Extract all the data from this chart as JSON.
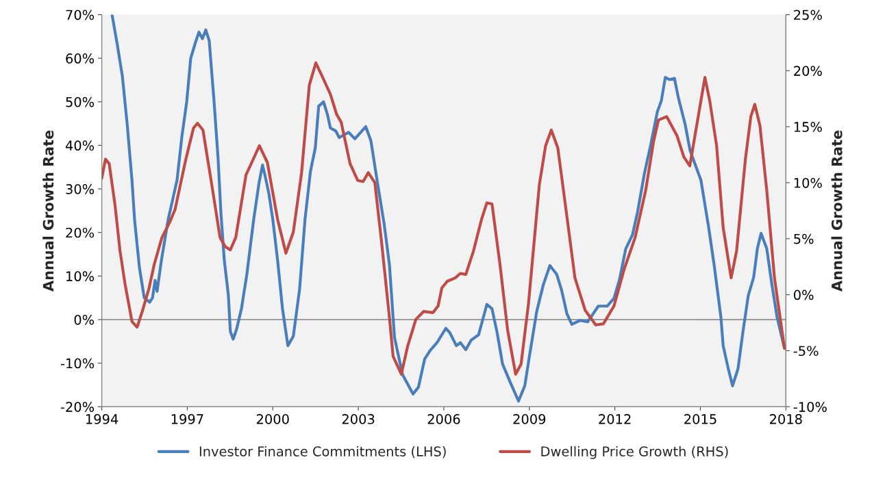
{
  "chart_data": {
    "type": "line",
    "xlabel": null,
    "ylabel": "Annual Growth Rate",
    "y2label": "Annual Growth Rate",
    "xlim": [
      1994,
      2018
    ],
    "xticks": [
      1994,
      1997,
      2000,
      2003,
      2006,
      2009,
      2012,
      2015,
      2018
    ],
    "ylim": [
      -20,
      70
    ],
    "yticks": [
      {
        "value": -20,
        "label": "-20%"
      },
      {
        "value": -10,
        "label": "-10%"
      },
      {
        "value": 0,
        "label": "0%"
      },
      {
        "value": 10,
        "label": "10%"
      },
      {
        "value": 20,
        "label": "20%"
      },
      {
        "value": 30,
        "label": "30%"
      },
      {
        "value": 40,
        "label": "40%"
      },
      {
        "value": 50,
        "label": "50%"
      },
      {
        "value": 60,
        "label": "60%"
      },
      {
        "value": 70,
        "label": "70%"
      }
    ],
    "y2lim": [
      -10,
      25
    ],
    "y2ticks": [
      {
        "value": -10,
        "label": "-10%"
      },
      {
        "value": -5,
        "label": "-5%"
      },
      {
        "value": 0,
        "label": "0%"
      },
      {
        "value": 5,
        "label": "5%"
      },
      {
        "value": 10,
        "label": "10%"
      },
      {
        "value": 15,
        "label": "15%"
      },
      {
        "value": 20,
        "label": "20%"
      },
      {
        "value": 25,
        "label": "25%"
      }
    ],
    "ref_lines": [
      {
        "axis": "y",
        "value": 0,
        "color": "#808080"
      }
    ],
    "grid": false,
    "legend": "bottom",
    "marker": "none",
    "line_style": "solid",
    "series": [
      {
        "name": "Investor Finance Commitments (LHS)",
        "color": "#4a7ebb",
        "axis": "y",
        "x": [
          1994.36,
          1994.53,
          1994.72,
          1994.89,
          1995.06,
          1995.15,
          1995.32,
          1995.49,
          1995.68,
          1995.78,
          1995.87,
          1995.94,
          1996.09,
          1996.33,
          1996.64,
          1996.81,
          1996.98,
          1997.12,
          1997.29,
          1997.41,
          1997.53,
          1997.65,
          1997.77,
          1997.94,
          1998.08,
          1998.18,
          1998.3,
          1998.44,
          1998.51,
          1998.61,
          1998.73,
          1998.9,
          1999.09,
          1999.33,
          1999.52,
          1999.64,
          1999.74,
          1999.86,
          2000.0,
          2000.17,
          2000.34,
          2000.53,
          2000.72,
          2000.94,
          2001.13,
          2001.32,
          2001.49,
          2001.61,
          2001.78,
          2001.92,
          2002.02,
          2002.21,
          2002.33,
          2002.66,
          2002.88,
          2003.26,
          2003.44,
          2003.67,
          2003.91,
          2004.09,
          2004.27,
          2004.55,
          2004.92,
          2005.11,
          2005.33,
          2005.52,
          2005.76,
          2006.07,
          2006.21,
          2006.44,
          2006.58,
          2006.77,
          2006.96,
          2007.22,
          2007.51,
          2007.69,
          2007.87,
          2008.06,
          2008.33,
          2008.62,
          2008.84,
          2009.02,
          2009.26,
          2009.49,
          2009.72,
          2009.96,
          2010.13,
          2010.32,
          2010.49,
          2010.77,
          2011.05,
          2011.42,
          2011.73,
          2011.97,
          2012.16,
          2012.38,
          2012.62,
          2012.8,
          2013.03,
          2013.27,
          2013.49,
          2013.63,
          2013.77,
          2013.92,
          2014.09,
          2014.23,
          2014.47,
          2014.64,
          2014.88,
          2015.02,
          2015.29,
          2015.48,
          2015.72,
          2015.8,
          2015.98,
          2016.13,
          2016.32,
          2016.49,
          2016.68,
          2016.87,
          2017.0,
          2017.13,
          2017.33,
          2017.51,
          2017.69,
          2017.93
        ],
        "values": [
          70,
          63.7,
          56,
          45,
          32,
          23,
          12,
          5,
          4,
          5,
          9,
          6.5,
          13.5,
          23,
          32,
          42,
          50,
          60,
          63.7,
          66,
          64.5,
          66.5,
          64,
          50,
          37,
          24.5,
          13.5,
          5.7,
          -2.7,
          -4.5,
          -2.2,
          2.5,
          10.4,
          23,
          31.5,
          35.5,
          32.7,
          29,
          23,
          13.5,
          2.5,
          -6,
          -3.8,
          7,
          23,
          34,
          39.4,
          49,
          50,
          47,
          44,
          43.3,
          41.8,
          43,
          41.5,
          44.3,
          41.1,
          31.5,
          21.8,
          12.7,
          -4.1,
          -12.6,
          -17.1,
          -15.5,
          -9,
          -7.1,
          -5.3,
          -2,
          -3,
          -6,
          -5.3,
          -6.9,
          -4.7,
          -3.5,
          3.5,
          2.5,
          -3,
          -10.2,
          -14.4,
          -18.7,
          -15.2,
          -7.7,
          1.9,
          8,
          12.4,
          10.4,
          6.8,
          1.3,
          -1.1,
          -0.2,
          -0.5,
          3.1,
          3.1,
          4.9,
          9.1,
          16.2,
          19.5,
          24.8,
          33.3,
          40.5,
          47.7,
          50.2,
          55.6,
          55.1,
          55.4,
          50.9,
          44.7,
          38.8,
          34.5,
          32,
          21.2,
          12.7,
          0.6,
          -6,
          -11.3,
          -15.2,
          -11.3,
          -3,
          5.5,
          9.7,
          16.3,
          19.8,
          16.3,
          8,
          0.6,
          -6
        ]
      },
      {
        "name": "Dwelling Price Growth (RHS)",
        "color": "#be4b48",
        "axis": "y2",
        "x": [
          1994.0,
          1994.13,
          1994.26,
          1994.46,
          1994.64,
          1994.82,
          1995.06,
          1995.24,
          1995.42,
          1995.66,
          1995.84,
          1996.11,
          1996.39,
          1996.57,
          1996.95,
          1997.22,
          1997.36,
          1997.55,
          1997.86,
          1998.15,
          1998.33,
          1998.51,
          1998.7,
          1999.06,
          1999.35,
          1999.53,
          1999.81,
          2000.17,
          2000.46,
          2000.72,
          2001.01,
          2001.28,
          2001.51,
          2001.75,
          2002.02,
          2002.24,
          2002.4,
          2002.71,
          2002.98,
          2003.17,
          2003.35,
          2003.58,
          2003.82,
          2004.09,
          2004.22,
          2004.51,
          2004.73,
          2005.02,
          2005.29,
          2005.62,
          2005.8,
          2005.93,
          2006.12,
          2006.4,
          2006.58,
          2006.77,
          2007.04,
          2007.32,
          2007.51,
          2007.69,
          2007.97,
          2008.24,
          2008.52,
          2008.71,
          2008.97,
          2009.35,
          2009.57,
          2009.77,
          2010.0,
          2010.27,
          2010.6,
          2010.96,
          2011.33,
          2011.6,
          2011.97,
          2012.33,
          2012.71,
          2013.08,
          2013.36,
          2013.53,
          2013.82,
          2014.18,
          2014.42,
          2014.63,
          2014.83,
          2015.16,
          2015.33,
          2015.57,
          2015.8,
          2016.08,
          2016.27,
          2016.58,
          2016.77,
          2016.91,
          2017.09,
          2017.33,
          2017.6,
          2017.95
        ],
        "values": [
          10.4,
          12.1,
          11.7,
          8.1,
          3.9,
          0.9,
          -2.4,
          -2.9,
          -1.5,
          0.6,
          2.7,
          5.1,
          6.5,
          7.6,
          12.1,
          14.9,
          15.3,
          14.7,
          9.8,
          5.1,
          4.3,
          4.0,
          5.1,
          10.7,
          12.3,
          13.3,
          11.8,
          6.7,
          3.7,
          5.6,
          10.9,
          18.7,
          20.7,
          19.4,
          17.9,
          16.1,
          15.4,
          11.7,
          10.2,
          10.1,
          10.9,
          10.0,
          4.6,
          -2.0,
          -5.5,
          -7.1,
          -4.6,
          -2.2,
          -1.5,
          -1.6,
          -1.0,
          0.6,
          1.2,
          1.5,
          1.9,
          1.8,
          3.9,
          6.7,
          8.2,
          8.1,
          2.7,
          -3.2,
          -7.1,
          -6.2,
          -0.8,
          9.8,
          13.3,
          14.7,
          13.1,
          7.9,
          1.5,
          -1.4,
          -2.7,
          -2.6,
          -1.0,
          2.3,
          5.1,
          9.3,
          13.7,
          15.6,
          15.9,
          14.2,
          12.3,
          11.5,
          14.5,
          19.4,
          17.3,
          13.3,
          6.0,
          1.5,
          3.9,
          12.1,
          15.9,
          17.0,
          15.1,
          9.3,
          1.5,
          -4.8
        ]
      }
    ]
  }
}
